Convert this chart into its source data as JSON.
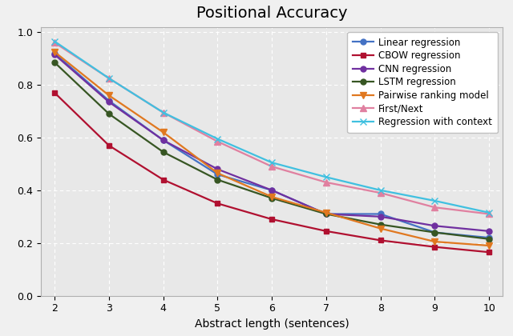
{
  "title": "Positional Accuracy",
  "xlabel": "Abstract length (sentences)",
  "x": [
    2,
    3,
    4,
    5,
    6,
    7,
    8,
    9,
    10
  ],
  "series": {
    "Linear regression": {
      "y": [
        0.92,
        0.74,
        0.59,
        0.46,
        0.4,
        0.31,
        0.31,
        0.24,
        0.22
      ],
      "color": "#4472c4",
      "marker": "o",
      "markersize": 5
    },
    "CBOW regression": {
      "y": [
        0.77,
        0.57,
        0.44,
        0.35,
        0.29,
        0.245,
        0.21,
        0.185,
        0.165
      ],
      "color": "#b01030",
      "marker": "s",
      "markersize": 5
    },
    "CNN regression": {
      "y": [
        0.915,
        0.735,
        0.59,
        0.48,
        0.4,
        0.31,
        0.3,
        0.265,
        0.245
      ],
      "color": "#7030a0",
      "marker": "o",
      "markersize": 5
    },
    "LSTM regression": {
      "y": [
        0.885,
        0.69,
        0.545,
        0.44,
        0.37,
        0.31,
        0.27,
        0.24,
        0.215
      ],
      "color": "#375623",
      "marker": "o",
      "markersize": 5
    },
    "Pairwise ranking model": {
      "y": [
        0.925,
        0.76,
        0.62,
        0.465,
        0.375,
        0.315,
        0.255,
        0.205,
        0.19
      ],
      "color": "#e07820",
      "marker": "v",
      "markersize": 6
    },
    "First/Next": {
      "y": [
        0.96,
        0.825,
        0.695,
        0.585,
        0.49,
        0.43,
        0.39,
        0.335,
        0.31
      ],
      "color": "#e080a0",
      "marker": "^",
      "markersize": 6
    },
    "Regression with context": {
      "y": [
        0.965,
        0.825,
        0.695,
        0.595,
        0.505,
        0.45,
        0.4,
        0.36,
        0.315
      ],
      "color": "#40c0e0",
      "marker": "x",
      "markersize": 6
    }
  },
  "ylim": [
    0.0,
    1.02
  ],
  "xlim": [
    1.75,
    10.25
  ],
  "yticks": [
    0.0,
    0.2,
    0.4,
    0.6,
    0.8,
    1.0
  ],
  "xticks": [
    2,
    3,
    4,
    5,
    6,
    7,
    8,
    9,
    10
  ],
  "background_color": "#e8e8e8",
  "grid_color": "#ffffff",
  "title_fontsize": 14,
  "legend_fontsize": 8.5,
  "tick_fontsize": 9,
  "linewidth": 1.6
}
